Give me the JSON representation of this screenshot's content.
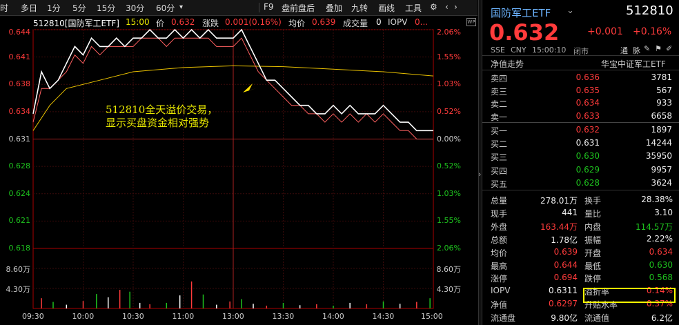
{
  "toolbar": {
    "items": [
      "时",
      "多日",
      "1分",
      "5分",
      "15分",
      "30分",
      "60分"
    ],
    "right_items": [
      "F9",
      "盘前盘后",
      "叠加",
      "九转",
      "画线",
      "工具"
    ]
  },
  "infobar": {
    "code_name": "512810[国防军工ETF]",
    "time": "15:00",
    "price_label": "价",
    "price": "0.632",
    "change_label": "涨跌",
    "change": "0.001(0.16%)",
    "avg_label": "均价",
    "avg": "0.639",
    "vol_label": "成交量",
    "vol": "0",
    "iopv_label": "IOPV",
    "iopv": "0..."
  },
  "chart_data": {
    "type": "line",
    "y_left_ticks": [
      "0.644",
      "0.641",
      "0.638",
      "0.634",
      "0.631",
      "0.628",
      "0.624",
      "0.621",
      "0.618"
    ],
    "y_right_ticks": [
      "2.06%",
      "1.55%",
      "1.03%",
      "0.52%",
      "0.00%",
      "0.52%",
      "1.03%",
      "1.55%",
      "2.06%"
    ],
    "vol_ticks_left": [
      "8.60万",
      "4.30万"
    ],
    "vol_ticks_right": [
      "8.60万",
      "4.30万"
    ],
    "x_ticks": [
      "09:30",
      "10:00",
      "10:30",
      "11:00",
      "13:00",
      "13:30",
      "14:00",
      "14:30",
      "15:00"
    ],
    "ylim": [
      0.618,
      0.644
    ],
    "prev_close": 0.631,
    "price_series": [
      [
        0,
        0.634
      ],
      [
        5,
        0.639
      ],
      [
        10,
        0.637
      ],
      [
        15,
        0.638
      ],
      [
        20,
        0.64
      ],
      [
        25,
        0.642
      ],
      [
        30,
        0.641
      ],
      [
        35,
        0.643
      ],
      [
        40,
        0.642
      ],
      [
        45,
        0.642
      ],
      [
        50,
        0.643
      ],
      [
        55,
        0.642
      ],
      [
        60,
        0.643
      ],
      [
        65,
        0.643
      ],
      [
        70,
        0.644
      ],
      [
        75,
        0.643
      ],
      [
        80,
        0.643
      ],
      [
        85,
        0.644
      ],
      [
        90,
        0.643
      ],
      [
        95,
        0.644
      ],
      [
        100,
        0.643
      ],
      [
        105,
        0.644
      ],
      [
        110,
        0.643
      ],
      [
        115,
        0.643
      ],
      [
        120,
        0.643
      ],
      [
        125,
        0.644
      ],
      [
        130,
        0.642
      ],
      [
        135,
        0.64
      ],
      [
        140,
        0.638
      ],
      [
        145,
        0.638
      ],
      [
        150,
        0.637
      ],
      [
        155,
        0.636
      ],
      [
        160,
        0.635
      ],
      [
        165,
        0.635
      ],
      [
        170,
        0.634
      ],
      [
        175,
        0.634
      ],
      [
        180,
        0.635
      ],
      [
        185,
        0.634
      ],
      [
        190,
        0.635
      ],
      [
        195,
        0.634
      ],
      [
        200,
        0.634
      ],
      [
        205,
        0.634
      ],
      [
        210,
        0.635
      ],
      [
        215,
        0.634
      ],
      [
        220,
        0.633
      ],
      [
        225,
        0.633
      ],
      [
        230,
        0.632
      ],
      [
        235,
        0.632
      ],
      [
        240,
        0.632
      ]
    ],
    "iopv_series": [
      [
        0,
        0.633
      ],
      [
        5,
        0.637
      ],
      [
        10,
        0.637
      ],
      [
        15,
        0.638
      ],
      [
        20,
        0.639
      ],
      [
        25,
        0.641
      ],
      [
        30,
        0.64
      ],
      [
        35,
        0.642
      ],
      [
        40,
        0.641
      ],
      [
        45,
        0.642
      ],
      [
        50,
        0.642
      ],
      [
        55,
        0.642
      ],
      [
        60,
        0.642
      ],
      [
        65,
        0.643
      ],
      [
        70,
        0.643
      ],
      [
        75,
        0.643
      ],
      [
        80,
        0.642
      ],
      [
        85,
        0.643
      ],
      [
        90,
        0.643
      ],
      [
        95,
        0.643
      ],
      [
        100,
        0.643
      ],
      [
        105,
        0.643
      ],
      [
        110,
        0.642
      ],
      [
        115,
        0.642
      ],
      [
        120,
        0.642
      ],
      [
        125,
        0.643
      ],
      [
        130,
        0.641
      ],
      [
        135,
        0.639
      ],
      [
        140,
        0.638
      ],
      [
        145,
        0.637
      ],
      [
        150,
        0.636
      ],
      [
        155,
        0.635
      ],
      [
        160,
        0.635
      ],
      [
        165,
        0.634
      ],
      [
        170,
        0.634
      ],
      [
        175,
        0.633
      ],
      [
        180,
        0.634
      ],
      [
        185,
        0.633
      ],
      [
        190,
        0.634
      ],
      [
        195,
        0.633
      ],
      [
        200,
        0.634
      ],
      [
        205,
        0.633
      ],
      [
        210,
        0.634
      ],
      [
        215,
        0.633
      ],
      [
        220,
        0.632
      ],
      [
        225,
        0.632
      ],
      [
        230,
        0.631
      ],
      [
        235,
        0.631
      ],
      [
        240,
        0.631
      ]
    ],
    "avg_series": [
      [
        0,
        0.632
      ],
      [
        10,
        0.635
      ],
      [
        20,
        0.637
      ],
      [
        40,
        0.638
      ],
      [
        60,
        0.639
      ],
      [
        90,
        0.6395
      ],
      [
        120,
        0.6397
      ],
      [
        150,
        0.6396
      ],
      [
        180,
        0.6393
      ],
      [
        210,
        0.639
      ],
      [
        240,
        0.6385
      ]
    ],
    "volume": [
      [
        5,
        2.2
      ],
      [
        12,
        1.4
      ],
      [
        20,
        0.8
      ],
      [
        30,
        1.6
      ],
      [
        38,
        3.1
      ],
      [
        45,
        2.4
      ],
      [
        52,
        4.0
      ],
      [
        58,
        3.6
      ],
      [
        64,
        1.2
      ],
      [
        70,
        0.9
      ],
      [
        80,
        1.2
      ],
      [
        88,
        2.8
      ],
      [
        95,
        5.8
      ],
      [
        102,
        3.0
      ],
      [
        110,
        0.8
      ],
      [
        118,
        1.5
      ],
      [
        125,
        2.0
      ],
      [
        132,
        1.0
      ],
      [
        140,
        0.6
      ],
      [
        150,
        1.2
      ],
      [
        160,
        0.7
      ],
      [
        170,
        0.9
      ],
      [
        180,
        0.6
      ],
      [
        190,
        1.2
      ],
      [
        200,
        0.9
      ],
      [
        210,
        1.5
      ],
      [
        220,
        1.0
      ],
      [
        230,
        1.4
      ],
      [
        238,
        2.2
      ]
    ],
    "vol_max": 12.9,
    "annotation": [
      "512810全天溢价交易，",
      "显示买盘资金相对强势"
    ]
  },
  "panel": {
    "title": "国防军工ETF",
    "code": "512810",
    "price": "0.632",
    "change": "+0.001",
    "change_pct": "+0.16%",
    "exchange": "SSE",
    "currency": "CNY",
    "time": "15:00:10",
    "status": "闭市",
    "tools": [
      "通",
      "脉"
    ],
    "section_left": "净值走势",
    "section_right": "华宝中证军工ETF",
    "asks": [
      {
        "label": "卖四",
        "price": "0.636",
        "vol": "3781"
      },
      {
        "label": "卖三",
        "price": "0.635",
        "vol": "567"
      },
      {
        "label": "卖二",
        "price": "0.634",
        "vol": "933"
      },
      {
        "label": "卖一",
        "price": "0.633",
        "vol": "6658"
      }
    ],
    "bids": [
      {
        "label": "买一",
        "price": "0.632",
        "vol": "1897"
      },
      {
        "label": "买二",
        "price": "0.631",
        "vol": "14244"
      },
      {
        "label": "买三",
        "price": "0.630",
        "vol": "35950"
      },
      {
        "label": "买四",
        "price": "0.629",
        "vol": "9957"
      },
      {
        "label": "买五",
        "price": "0.628",
        "vol": "3624"
      }
    ],
    "stats": [
      {
        "l1": "总量",
        "v1": "278.01万",
        "l2": "换手",
        "v2": "28.38%"
      },
      {
        "l1": "现手",
        "v1": "441",
        "l2": "量比",
        "v2": "3.10"
      },
      {
        "l1": "外盘",
        "v1": "163.44万",
        "l2": "内盘",
        "v2": "114.57万"
      },
      {
        "l1": "总额",
        "v1": "1.78亿",
        "l2": "振幅",
        "v2": "2.22%"
      },
      {
        "l1": "均价",
        "v1": "0.639",
        "l2": "开盘",
        "v2": "0.634"
      },
      {
        "l1": "最高",
        "v1": "0.644",
        "l2": "最低",
        "v2": "0.630"
      },
      {
        "l1": "涨停",
        "v1": "0.694",
        "l2": "跌停",
        "v2": "0.568"
      },
      {
        "l1": "IOPV",
        "v1": "0.6311",
        "l2": "溢折率",
        "v2": "0.14%"
      },
      {
        "l1": "净值",
        "v1": "0.6297",
        "l2": "升贴水率",
        "v2": "0.37%"
      },
      {
        "l1": "流通盘",
        "v1": "9.80亿",
        "l2": "流通值",
        "v2": "6.2亿"
      }
    ]
  },
  "colors": {
    "up": "#ff3b3b",
    "down": "#1ec31e",
    "price_line": "#ffffff",
    "avg_line": "#e8c000",
    "iopv_line": "#ff6060",
    "highlight": "#ffff00"
  }
}
